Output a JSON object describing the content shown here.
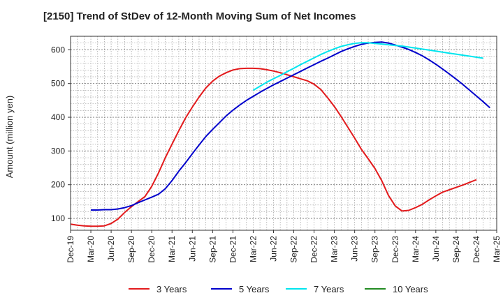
{
  "chart_data": {
    "type": "line",
    "title": "[2150]  Trend of StDev of 12-Month Moving Sum of Net Incomes",
    "xlabel": "",
    "ylabel": "Amount (million yen)",
    "ylim": [
      65,
      640
    ],
    "yticks": [
      100,
      200,
      300,
      400,
      500,
      600
    ],
    "x_tick_labels": [
      "Dec-19",
      "Mar-20",
      "Jun-20",
      "Sep-20",
      "Dec-20",
      "Mar-21",
      "Jun-21",
      "Sep-21",
      "Dec-21",
      "Mar-22",
      "Jun-22",
      "Sep-22",
      "Dec-22",
      "Mar-23",
      "Jun-23",
      "Sep-23",
      "Dec-23",
      "Mar-24",
      "Jun-24",
      "Sep-24",
      "Dec-24",
      "Mar-25"
    ],
    "grid": true,
    "legend_position": "bottom",
    "series": [
      {
        "name": "3 Years",
        "color": "#e31a1c",
        "start_index": 0,
        "values": [
          83,
          80,
          78,
          77,
          77,
          78,
          85,
          98,
          118,
          135,
          150,
          165,
          195,
          235,
          280,
          320,
          360,
          398,
          430,
          460,
          487,
          507,
          522,
          532,
          540,
          544,
          545,
          545,
          544,
          541,
          537,
          532,
          526,
          520,
          514,
          508,
          498,
          482,
          458,
          432,
          402,
          370,
          338,
          305,
          277,
          248,
          212,
          168,
          137,
          122,
          124,
          132,
          142,
          155,
          167,
          178,
          185,
          192,
          199,
          207,
          215
        ]
      },
      {
        "name": "5 Years",
        "color": "#0000cc",
        "start_index": 3,
        "values": [
          125,
          125,
          126,
          126,
          128,
          132,
          138,
          147,
          155,
          163,
          172,
          188,
          212,
          240,
          265,
          292,
          318,
          343,
          364,
          384,
          404,
          421,
          436,
          450,
          462,
          474,
          485,
          496,
          506,
          516,
          526,
          536,
          546,
          556,
          566,
          575,
          585,
          595,
          603,
          610,
          616,
          620,
          622,
          623,
          620,
          614,
          608,
          601,
          592,
          582,
          570,
          557,
          543,
          528,
          513,
          497,
          480,
          463,
          446,
          428
        ]
      },
      {
        "name": "7 Years",
        "color": "#00e5ee",
        "start_index": 27,
        "values": [
          480,
          492,
          504,
          514,
          524,
          535,
          545,
          556,
          566,
          576,
          586,
          595,
          603,
          610,
          615,
          619,
          621,
          621,
          619,
          617,
          615,
          613,
          611,
          608,
          605,
          602,
          599,
          596,
          593,
          590,
          587,
          584,
          581,
          578,
          575
        ]
      },
      {
        "name": "10 Years",
        "color": "#228b22",
        "start_index": 0,
        "values": []
      }
    ]
  }
}
